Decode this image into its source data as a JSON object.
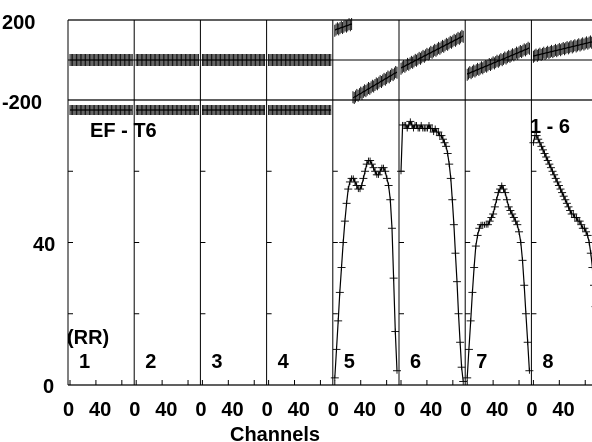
{
  "chart_data": {
    "type": "line",
    "title_left": "EF - T6",
    "title_right": "1 - 6",
    "polarization": "(RR)",
    "xlabel": "Channels",
    "x_tick_labels": [
      "0",
      "40"
    ],
    "phase_panel": {
      "ylim": [
        -200,
        200
      ],
      "y_tick_labels": [
        "200",
        "-200"
      ],
      "grid": "horizontal line at 0"
    },
    "amp_panel": {
      "ylim": [
        0,
        80
      ],
      "y_tick_labels": [
        "40",
        "0"
      ]
    },
    "channels": 48,
    "panels": [
      {
        "label": "1",
        "phase": 0,
        "phase_slope": 0,
        "amp": null
      },
      {
        "label": "2",
        "phase": 0,
        "phase_slope": 0,
        "amp": null
      },
      {
        "label": "3",
        "phase": 0,
        "phase_slope": 0,
        "amp": null
      },
      {
        "label": "4",
        "phase": 0,
        "phase_slope": 0,
        "amp": null
      },
      {
        "label": "5",
        "phase_segments": [
          {
            "from": 0,
            "to": 13,
            "start": 150,
            "end": 180
          },
          {
            "from": 14,
            "to": 48,
            "start": -190,
            "end": -60
          }
        ],
        "amp": [
          2,
          10,
          18,
          26,
          33,
          40,
          46,
          51,
          55,
          57,
          58,
          58,
          57,
          56,
          55,
          55,
          56,
          58,
          60,
          62,
          63,
          63,
          62,
          61,
          60,
          59,
          59,
          60,
          61,
          61,
          60,
          58,
          56,
          52,
          44,
          30,
          15,
          4
        ]
      },
      {
        "label": "6",
        "phase_segments": [
          {
            "from": 0,
            "to": 48,
            "start": -40,
            "end": 120
          }
        ],
        "amp": [
          60,
          73,
          73,
          73,
          72,
          73,
          74,
          73,
          72,
          73,
          73,
          72,
          72,
          73,
          72,
          72,
          72,
          72,
          73,
          72,
          72,
          71,
          72,
          71,
          71,
          70,
          70,
          69,
          68,
          67,
          65,
          62,
          58,
          52,
          45,
          37,
          29,
          20,
          12,
          5,
          1
        ]
      },
      {
        "label": "7",
        "phase_segments": [
          {
            "from": 0,
            "to": 48,
            "start": -70,
            "end": 60
          }
        ],
        "amp": [
          2,
          10,
          18,
          26,
          33,
          39,
          42,
          44,
          45,
          45,
          45,
          45,
          45,
          46,
          47,
          48,
          50,
          52,
          54,
          55,
          56,
          55,
          54,
          52,
          50,
          49,
          48,
          47,
          46,
          45,
          43,
          40,
          35,
          28,
          20,
          12,
          4
        ]
      },
      {
        "label": "8",
        "phase_segments": [
          {
            "from": 0,
            "to": 48,
            "start": 20,
            "end": 95
          }
        ],
        "amp": [
          68,
          70,
          70,
          69,
          68,
          67,
          66,
          65,
          64,
          63,
          62,
          61,
          60,
          59,
          58,
          57,
          56,
          55,
          54,
          53,
          52,
          51,
          50,
          49,
          48,
          48,
          47,
          47,
          46,
          46,
          45,
          44,
          44,
          43,
          42,
          40,
          37,
          33,
          28,
          22
        ]
      }
    ]
  }
}
